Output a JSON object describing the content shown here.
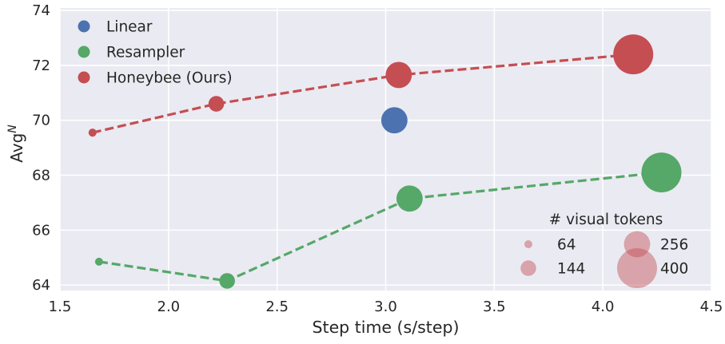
{
  "chart_data": {
    "type": "scatter",
    "title": "",
    "xlabel": "Step time (s/step)",
    "ylabel": {
      "base": "Avg",
      "superscript": "N"
    },
    "xlim": [
      1.5,
      4.5
    ],
    "ylim": [
      63.8,
      74.09
    ],
    "grid": true,
    "legend_position": "upper-left",
    "xticks": [
      {
        "v": 1.5,
        "label": "1.5"
      },
      {
        "v": 2.0,
        "label": "2.0"
      },
      {
        "v": 2.5,
        "label": "2.5"
      },
      {
        "v": 3.0,
        "label": "3.0"
      },
      {
        "v": 3.5,
        "label": "3.5"
      },
      {
        "v": 4.0,
        "label": "4.0"
      },
      {
        "v": 4.5,
        "label": "4.5"
      }
    ],
    "yticks": [
      {
        "v": 64,
        "label": "64"
      },
      {
        "v": 66,
        "label": "66"
      },
      {
        "v": 68,
        "label": "68"
      },
      {
        "v": 70,
        "label": "70"
      },
      {
        "v": 72,
        "label": "72"
      },
      {
        "v": 74,
        "label": "74"
      }
    ],
    "series": [
      {
        "name": "Linear",
        "color": "#4C72B0",
        "line": "none",
        "points": [
          {
            "x": 3.04,
            "y": 70.0,
            "tokens": 256
          }
        ]
      },
      {
        "name": "Resampler",
        "color": "#55A868",
        "line": "dashed",
        "points": [
          {
            "x": 1.68,
            "y": 64.85,
            "tokens": 64
          },
          {
            "x": 2.27,
            "y": 64.15,
            "tokens": 144
          },
          {
            "x": 3.11,
            "y": 67.15,
            "tokens": 256
          },
          {
            "x": 4.27,
            "y": 68.1,
            "tokens": 400
          }
        ]
      },
      {
        "name": "Honeybee (Ours)",
        "color": "#C44E52",
        "line": "dashed",
        "points": [
          {
            "x": 1.65,
            "y": 69.55,
            "tokens": 64
          },
          {
            "x": 2.22,
            "y": 70.6,
            "tokens": 144
          },
          {
            "x": 3.06,
            "y": 71.65,
            "tokens": 256
          },
          {
            "x": 4.14,
            "y": 72.4,
            "tokens": 400
          }
        ]
      }
    ],
    "size_legend": {
      "title": "# visual tokens",
      "entries": [
        {
          "label": "64",
          "tokens": 64
        },
        {
          "label": "144",
          "tokens": 144
        },
        {
          "label": "256",
          "tokens": 256
        },
        {
          "label": "400",
          "tokens": 400
        }
      ],
      "bubble_color": "#C44E52",
      "bubble_opacity": 0.45
    }
  },
  "style": {
    "plot_bg": "#EAEAF2",
    "grid_color": "#FFFFFF",
    "text_color": "#262626",
    "fig_bg": "#FFFFFF"
  }
}
